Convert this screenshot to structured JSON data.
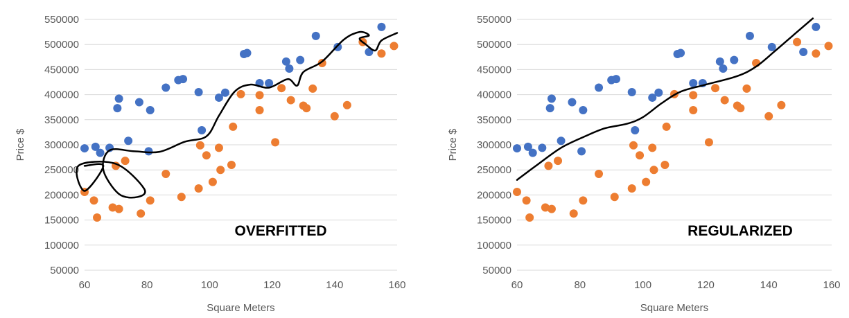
{
  "chart_data": [
    {
      "type": "scatter",
      "title": "",
      "overlay_label": "OVERFITTED",
      "xlabel": "Square Meters",
      "ylabel": "Price $",
      "xlim": [
        60,
        160
      ],
      "ylim": [
        50000,
        550000
      ],
      "x_ticks": [
        "60",
        "80",
        "100",
        "120",
        "140",
        "160"
      ],
      "y_ticks": [
        "50000",
        "100000",
        "150000",
        "200000",
        "250000",
        "300000",
        "350000",
        "400000",
        "450000",
        "500000",
        "550000"
      ],
      "grid": "horizontal",
      "series": [
        {
          "color": "#4472c4",
          "points": [
            [
              60,
              293000
            ],
            [
              63.5,
              296000
            ],
            [
              65,
              284000
            ],
            [
              68,
              294000
            ],
            [
              70.5,
              373000
            ],
            [
              71,
              392000
            ],
            [
              74,
              308000
            ],
            [
              77.5,
              385000
            ],
            [
              80.5,
              287000
            ],
            [
              81,
              369000
            ],
            [
              86,
              414000
            ],
            [
              90,
              429000
            ],
            [
              91.5,
              431000
            ],
            [
              96.5,
              405000
            ],
            [
              97.5,
              329000
            ],
            [
              103,
              394000
            ],
            [
              105,
              404000
            ],
            [
              111,
              481000
            ],
            [
              112,
              483000
            ],
            [
              116,
              423000
            ],
            [
              119,
              423000
            ],
            [
              124.5,
              466000
            ],
            [
              125.5,
              452000
            ],
            [
              129,
              469000
            ],
            [
              134,
              517000
            ],
            [
              141,
              495000
            ],
            [
              151,
              485000
            ],
            [
              155,
              535000
            ]
          ]
        },
        {
          "color": "#ed7d31",
          "points": [
            [
              60,
              206000
            ],
            [
              63,
              189000
            ],
            [
              64,
              155000
            ],
            [
              69,
              175000
            ],
            [
              70,
              258000
            ],
            [
              71,
              172000
            ],
            [
              73,
              268000
            ],
            [
              78,
              163000
            ],
            [
              81,
              189000
            ],
            [
              86,
              242000
            ],
            [
              91,
              196000
            ],
            [
              96.5,
              213000
            ],
            [
              97,
              299000
            ],
            [
              99,
              279000
            ],
            [
              101,
              226000
            ],
            [
              103,
              294000
            ],
            [
              103.5,
              250000
            ],
            [
              107,
              260000
            ],
            [
              107.5,
              336000
            ],
            [
              110,
              401000
            ],
            [
              116,
              399000
            ],
            [
              116,
              369000
            ],
            [
              121,
              305000
            ],
            [
              123,
              413000
            ],
            [
              126,
              389000
            ],
            [
              130,
              378000
            ],
            [
              131,
              373000
            ],
            [
              133,
              412000
            ],
            [
              136,
              463000
            ],
            [
              140,
              357000
            ],
            [
              144,
              379000
            ],
            [
              149,
              505000
            ],
            [
              155,
              482000
            ],
            [
              159,
              497000
            ]
          ]
        }
      ],
      "curve": [
        [
          60,
          258000
        ],
        [
          66,
          258000
        ],
        [
          60,
          208000
        ],
        [
          58,
          258000
        ],
        [
          70,
          262000
        ],
        [
          79,
          213000
        ],
        [
          77,
          196000
        ],
        [
          71,
          202000
        ],
        [
          66,
          250000
        ],
        [
          68,
          289000
        ],
        [
          76,
          287000
        ],
        [
          84,
          286000
        ],
        [
          92,
          306000
        ],
        [
          99,
          317000
        ],
        [
          103,
          358000
        ],
        [
          108,
          406000
        ],
        [
          113,
          420000
        ],
        [
          119,
          414000
        ],
        [
          125,
          431000
        ],
        [
          128,
          418000
        ],
        [
          130,
          445000
        ],
        [
          136,
          466000
        ],
        [
          143,
          510000
        ],
        [
          148,
          525000
        ],
        [
          151,
          518000
        ],
        [
          148,
          512000
        ],
        [
          150,
          500000
        ],
        [
          153,
          488000
        ],
        [
          155,
          508000
        ],
        [
          160,
          523000
        ]
      ]
    },
    {
      "type": "scatter",
      "title": "",
      "overlay_label": "REGULARIZED",
      "xlabel": "Square Meters",
      "ylabel": "Price $",
      "xlim": [
        60,
        160
      ],
      "ylim": [
        50000,
        550000
      ],
      "x_ticks": [
        "60",
        "80",
        "100",
        "120",
        "140",
        "160"
      ],
      "y_ticks": [
        "50000",
        "100000",
        "150000",
        "200000",
        "250000",
        "300000",
        "350000",
        "400000",
        "450000",
        "500000",
        "550000"
      ],
      "grid": "horizontal",
      "series": [
        {
          "color": "#4472c4",
          "points": [
            [
              60,
              293000
            ],
            [
              63.5,
              296000
            ],
            [
              65,
              284000
            ],
            [
              68,
              294000
            ],
            [
              70.5,
              373000
            ],
            [
              71,
              392000
            ],
            [
              74,
              308000
            ],
            [
              77.5,
              385000
            ],
            [
              80.5,
              287000
            ],
            [
              81,
              369000
            ],
            [
              86,
              414000
            ],
            [
              90,
              429000
            ],
            [
              91.5,
              431000
            ],
            [
              96.5,
              405000
            ],
            [
              97.5,
              329000
            ],
            [
              103,
              394000
            ],
            [
              105,
              404000
            ],
            [
              111,
              481000
            ],
            [
              112,
              483000
            ],
            [
              116,
              423000
            ],
            [
              119,
              423000
            ],
            [
              124.5,
              466000
            ],
            [
              125.5,
              452000
            ],
            [
              129,
              469000
            ],
            [
              134,
              517000
            ],
            [
              141,
              495000
            ],
            [
              151,
              485000
            ],
            [
              155,
              535000
            ]
          ]
        },
        {
          "color": "#ed7d31",
          "points": [
            [
              60,
              206000
            ],
            [
              63,
              189000
            ],
            [
              64,
              155000
            ],
            [
              69,
              175000
            ],
            [
              70,
              258000
            ],
            [
              71,
              172000
            ],
            [
              73,
              268000
            ],
            [
              78,
              163000
            ],
            [
              81,
              189000
            ],
            [
              86,
              242000
            ],
            [
              91,
              196000
            ],
            [
              96.5,
              213000
            ],
            [
              97,
              299000
            ],
            [
              99,
              279000
            ],
            [
              101,
              226000
            ],
            [
              103,
              294000
            ],
            [
              103.5,
              250000
            ],
            [
              107,
              260000
            ],
            [
              107.5,
              336000
            ],
            [
              110,
              401000
            ],
            [
              116,
              399000
            ],
            [
              116,
              369000
            ],
            [
              121,
              305000
            ],
            [
              123,
              413000
            ],
            [
              126,
              389000
            ],
            [
              130,
              378000
            ],
            [
              131,
              373000
            ],
            [
              133,
              412000
            ],
            [
              136,
              463000
            ],
            [
              140,
              357000
            ],
            [
              144,
              379000
            ],
            [
              149,
              505000
            ],
            [
              155,
              482000
            ],
            [
              159,
              497000
            ]
          ]
        }
      ],
      "curve": [
        [
          60,
          230000
        ],
        [
          66,
          258000
        ],
        [
          74,
          294000
        ],
        [
          82,
          318000
        ],
        [
          88,
          333000
        ],
        [
          95,
          342000
        ],
        [
          100,
          355000
        ],
        [
          106,
          383000
        ],
        [
          112,
          406000
        ],
        [
          120,
          420000
        ],
        [
          130,
          437000
        ],
        [
          136,
          456000
        ],
        [
          142,
          487000
        ],
        [
          149,
          525000
        ],
        [
          154,
          552000
        ]
      ]
    }
  ]
}
